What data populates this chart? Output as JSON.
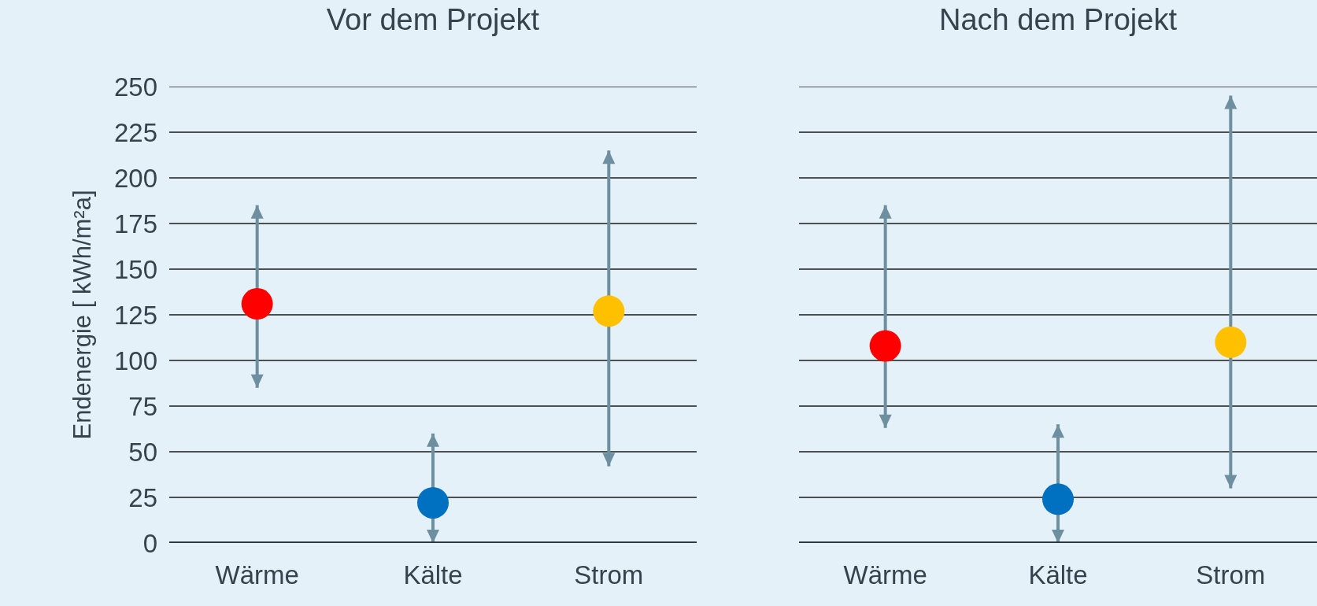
{
  "chart_data": [
    {
      "type": "scatter",
      "title": "Vor dem Projekt",
      "ylabel": "Endenergie [ kWh/m²a]",
      "categories": [
        "Wärme",
        "Kälte",
        "Strom"
      ],
      "values": [
        131,
        22,
        127
      ],
      "colors": [
        "#ff0000",
        "#0070c0",
        "#ffc000"
      ],
      "errors": [
        [
          85,
          185
        ],
        [
          0,
          60
        ],
        [
          42,
          215
        ]
      ],
      "ylim": [
        0,
        250
      ],
      "yticks": [
        0,
        25,
        50,
        75,
        100,
        125,
        150,
        175,
        200,
        225,
        250
      ],
      "grid": "y",
      "marker": "circle"
    },
    {
      "type": "scatter",
      "title": "Nach dem Projekt",
      "categories": [
        "Wärme",
        "Kälte",
        "Strom"
      ],
      "values": [
        108,
        24,
        110
      ],
      "colors": [
        "#ff0000",
        "#0070c0",
        "#ffc000"
      ],
      "errors": [
        [
          63,
          185
        ],
        [
          0,
          65
        ],
        [
          30,
          245
        ]
      ],
      "ylim": [
        0,
        250
      ],
      "yticks": [
        0,
        25,
        50,
        75,
        100,
        125,
        150,
        175,
        200,
        225,
        250
      ],
      "grid": "y",
      "marker": "circle",
      "tick_labels": "x"
    }
  ]
}
